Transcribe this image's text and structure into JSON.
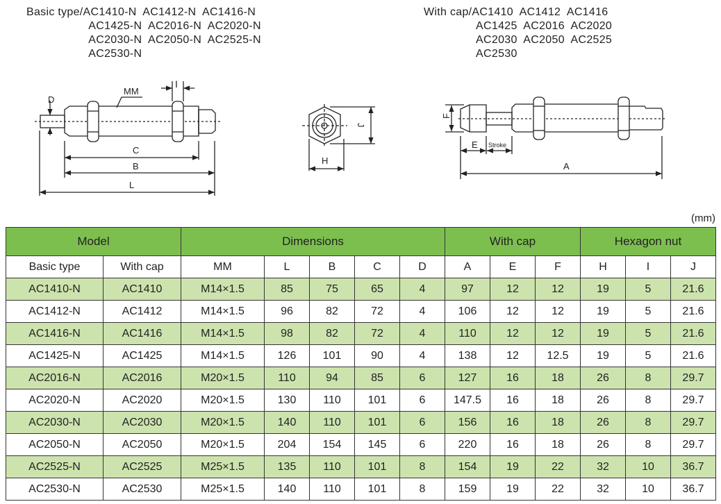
{
  "captions": {
    "basic": "Basic type/AC1410-N  AC1412-N  AC1416-N\n                   AC1425-N  AC2016-N  AC2020-N\n                   AC2030-N  AC2050-N  AC2525-N\n                   AC2530-N",
    "cap": "With cap/AC1410  AC1412  AC1416\n                AC1425  AC2016  AC2020\n                AC2030  AC2050  AC2525\n                AC2530"
  },
  "drawing_labels": {
    "D": "D",
    "MM": "MM",
    "I": "I",
    "C": "C",
    "B": "B",
    "L": "L",
    "J": "J",
    "H": "H",
    "F": "F",
    "E": "E",
    "stroke": "Stroke",
    "A": "A"
  },
  "unit": "(mm)",
  "colors": {
    "header": "#7dbf4f",
    "stripe": "#cde3ae"
  },
  "table": {
    "groups": [
      "Model",
      "Dimensions",
      "With cap",
      "Hexagon nut"
    ],
    "columns": [
      "Basic type",
      "With cap",
      "MM",
      "L",
      "B",
      "C",
      "D",
      "A",
      "E",
      "F",
      "H",
      "I",
      "J"
    ],
    "rows": [
      [
        "AC1410-N",
        "AC1410",
        "M14×1.5",
        "85",
        "75",
        "65",
        "4",
        "97",
        "12",
        "12",
        "19",
        "5",
        "21.6"
      ],
      [
        "AC1412-N",
        "AC1412",
        "M14×1.5",
        "96",
        "82",
        "72",
        "4",
        "106",
        "12",
        "12",
        "19",
        "5",
        "21.6"
      ],
      [
        "AC1416-N",
        "AC1416",
        "M14×1.5",
        "98",
        "82",
        "72",
        "4",
        "110",
        "12",
        "12",
        "19",
        "5",
        "21.6"
      ],
      [
        "AC1425-N",
        "AC1425",
        "M14×1.5",
        "126",
        "101",
        "90",
        "4",
        "138",
        "12",
        "12.5",
        "19",
        "5",
        "21.6"
      ],
      [
        "AC2016-N",
        "AC2016",
        "M20×1.5",
        "110",
        "94",
        "85",
        "6",
        "127",
        "16",
        "18",
        "26",
        "8",
        "29.7"
      ],
      [
        "AC2020-N",
        "AC2020",
        "M20×1.5",
        "130",
        "110",
        "101",
        "6",
        "147.5",
        "16",
        "18",
        "26",
        "8",
        "29.7"
      ],
      [
        "AC2030-N",
        "AC2030",
        "M20×1.5",
        "140",
        "110",
        "101",
        "6",
        "156",
        "16",
        "18",
        "26",
        "8",
        "29.7"
      ],
      [
        "AC2050-N",
        "AC2050",
        "M20×1.5",
        "204",
        "154",
        "145",
        "6",
        "220",
        "16",
        "18",
        "26",
        "8",
        "29.7"
      ],
      [
        "AC2525-N",
        "AC2525",
        "M25×1.5",
        "135",
        "110",
        "101",
        "8",
        "154",
        "19",
        "22",
        "32",
        "10",
        "36.7"
      ],
      [
        "AC2530-N",
        "AC2530",
        "M25×1.5",
        "140",
        "110",
        "101",
        "8",
        "159",
        "19",
        "22",
        "32",
        "10",
        "36.7"
      ]
    ]
  }
}
